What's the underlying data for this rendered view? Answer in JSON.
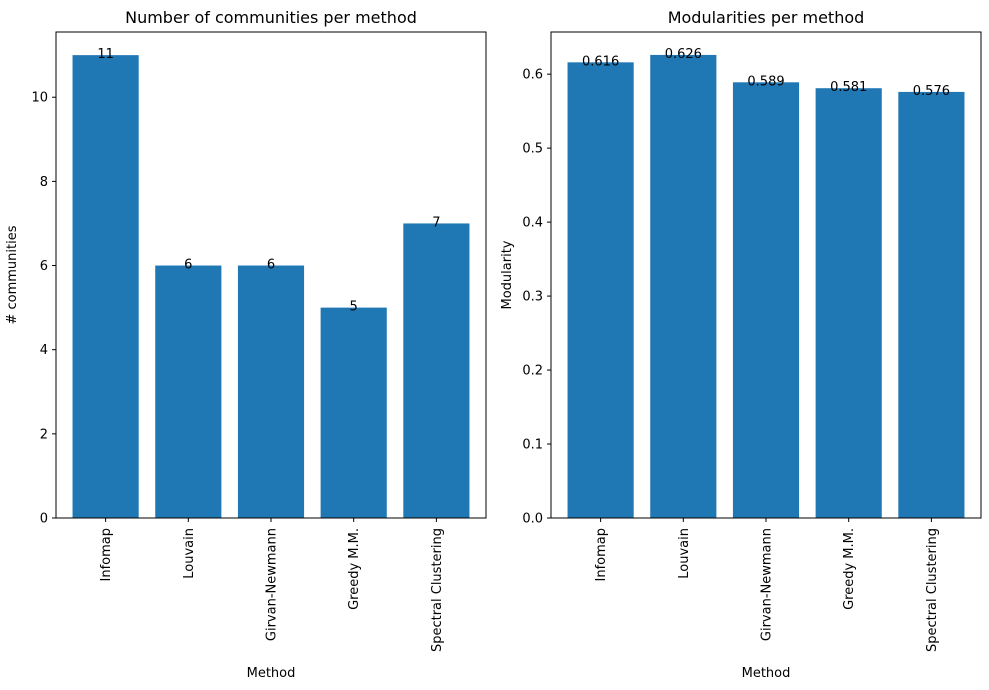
{
  "chart_data": [
    {
      "type": "bar",
      "title": "Number of communities per method",
      "xlabel": "Method",
      "ylabel": "# communities",
      "categories": [
        "Infomap",
        "Louvain",
        "Girvan-Newmann",
        "Greedy M.M.",
        "Spectral Clustering"
      ],
      "values": [
        11,
        6,
        6,
        5,
        7
      ],
      "value_labels": [
        "11",
        "6",
        "6",
        "5",
        "7"
      ],
      "ylim": [
        0,
        11.55
      ],
      "yticks": [
        0,
        2,
        4,
        6,
        8,
        10
      ],
      "ytick_labels": [
        "0",
        "2",
        "4",
        "6",
        "8",
        "10"
      ],
      "bar_color": "#1f77b4",
      "grid": false
    },
    {
      "type": "bar",
      "title": "Modularities per method",
      "xlabel": "Method",
      "ylabel": "Modularity",
      "categories": [
        "Infomap",
        "Louvain",
        "Girvan-Newmann",
        "Greedy M.M.",
        "Spectral Clustering"
      ],
      "values": [
        0.616,
        0.626,
        0.589,
        0.581,
        0.576
      ],
      "value_labels": [
        "0.616",
        "0.626",
        "0.589",
        "0.581",
        "0.576"
      ],
      "ylim": [
        0,
        0.657
      ],
      "yticks": [
        0,
        0.1,
        0.2,
        0.3,
        0.4,
        0.5,
        0.6
      ],
      "ytick_labels": [
        "0.0",
        "0.1",
        "0.2",
        "0.3",
        "0.4",
        "0.5",
        "0.6"
      ],
      "bar_color": "#1f77b4",
      "grid": false
    }
  ]
}
